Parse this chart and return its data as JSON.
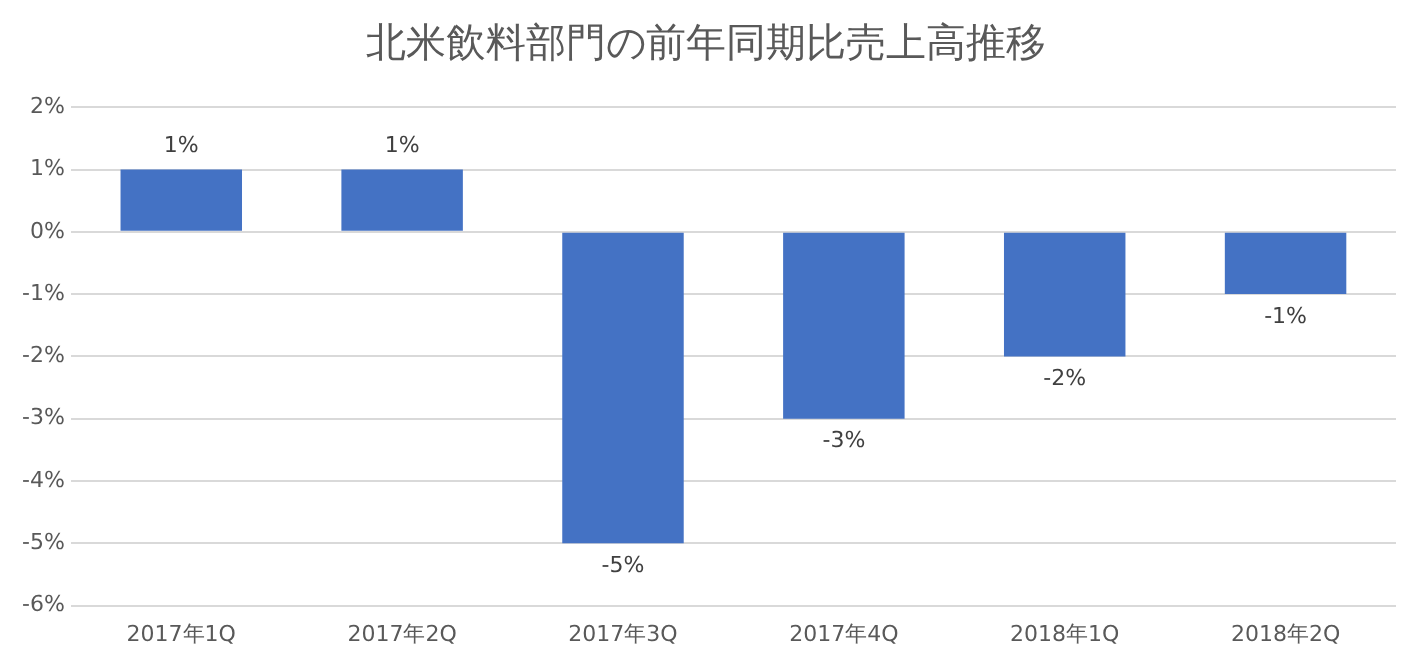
{
  "chart_data": {
    "type": "bar",
    "title": "北米飲料部門の前年同期比売上高推移",
    "categories": [
      "2017年1Q",
      "2017年2Q",
      "2017年3Q",
      "2017年4Q",
      "2018年1Q",
      "2018年2Q"
    ],
    "values": [
      1,
      1,
      -5,
      -3,
      -2,
      -1
    ],
    "value_labels": [
      "1%",
      "1%",
      "-5%",
      "-3%",
      "-2%",
      "-1%"
    ],
    "color": "#4472c4",
    "ylim": [
      -6,
      2
    ],
    "yticks": [
      {
        "value": -6,
        "label": "-6%"
      },
      {
        "value": -5,
        "label": "-5%"
      },
      {
        "value": -4,
        "label": "-4%"
      },
      {
        "value": -3,
        "label": "-3%"
      },
      {
        "value": -2,
        "label": "-2%"
      },
      {
        "value": -1,
        "label": "-1%"
      },
      {
        "value": 0,
        "label": "0%"
      },
      {
        "value": 1,
        "label": "1%"
      },
      {
        "value": 2,
        "label": "2%"
      }
    ],
    "grid": "y",
    "legend": false
  }
}
